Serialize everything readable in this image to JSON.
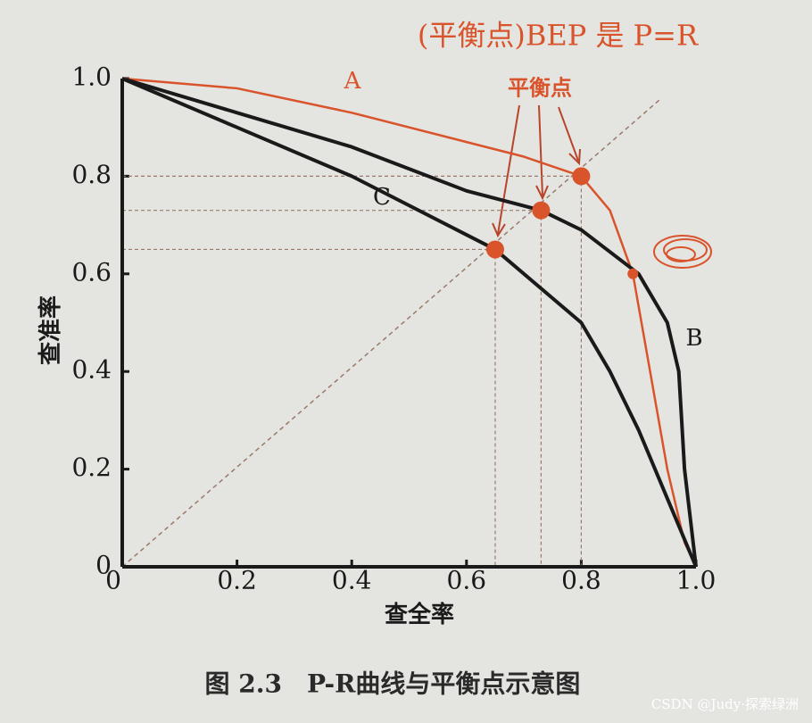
{
  "chart_data": {
    "type": "line",
    "xlabel": "查全率",
    "ylabel": "查准率",
    "caption": "图 2.3　P-R曲线与平衡点示意图",
    "xlim": [
      0,
      1
    ],
    "ylim": [
      0,
      1
    ],
    "xticks": [
      0,
      0.2,
      0.4,
      0.6,
      0.8,
      {
        "value": 1,
        "label": "1.0"
      }
    ],
    "yticks": [
      0,
      0.2,
      0.4,
      0.6,
      0.8,
      {
        "value": 1,
        "label": "1.0"
      }
    ],
    "series": [
      {
        "name": "A",
        "color": "#d9532b",
        "x": [
          0,
          0.2,
          0.4,
          0.6,
          0.7,
          0.8,
          0.85,
          0.89,
          0.92,
          0.95,
          0.98,
          1
        ],
        "values": [
          1,
          0.98,
          0.93,
          0.87,
          0.84,
          0.8,
          0.73,
          0.6,
          0.4,
          0.2,
          0.05,
          0
        ]
      },
      {
        "name": "B",
        "color": "#1a1a1a",
        "x": [
          0,
          0.2,
          0.4,
          0.6,
          0.73,
          0.8,
          0.9,
          0.95,
          0.97,
          0.98,
          0.99,
          1
        ],
        "values": [
          1,
          0.93,
          0.86,
          0.77,
          0.73,
          0.69,
          0.6,
          0.5,
          0.4,
          0.2,
          0.1,
          0
        ]
      },
      {
        "name": "C",
        "color": "#1a1a1a",
        "x": [
          0,
          0.2,
          0.4,
          0.6,
          0.65,
          0.75,
          0.8,
          0.85,
          0.9,
          0.95,
          1
        ],
        "values": [
          1,
          0.9,
          0.8,
          0.68,
          0.65,
          0.55,
          0.5,
          0.4,
          0.28,
          0.14,
          0
        ]
      }
    ],
    "markers": {
      "color": "#d9532b",
      "x": [
        0.65,
        0.73,
        0.8,
        0.89
      ],
      "values": [
        0.65,
        0.73,
        0.8,
        0.6
      ]
    },
    "annotation": "平衡点",
    "handwritten_note": "(平衡点)BEP 是 P=R",
    "watermark": "CSDN @Judy·探索绿洲"
  }
}
